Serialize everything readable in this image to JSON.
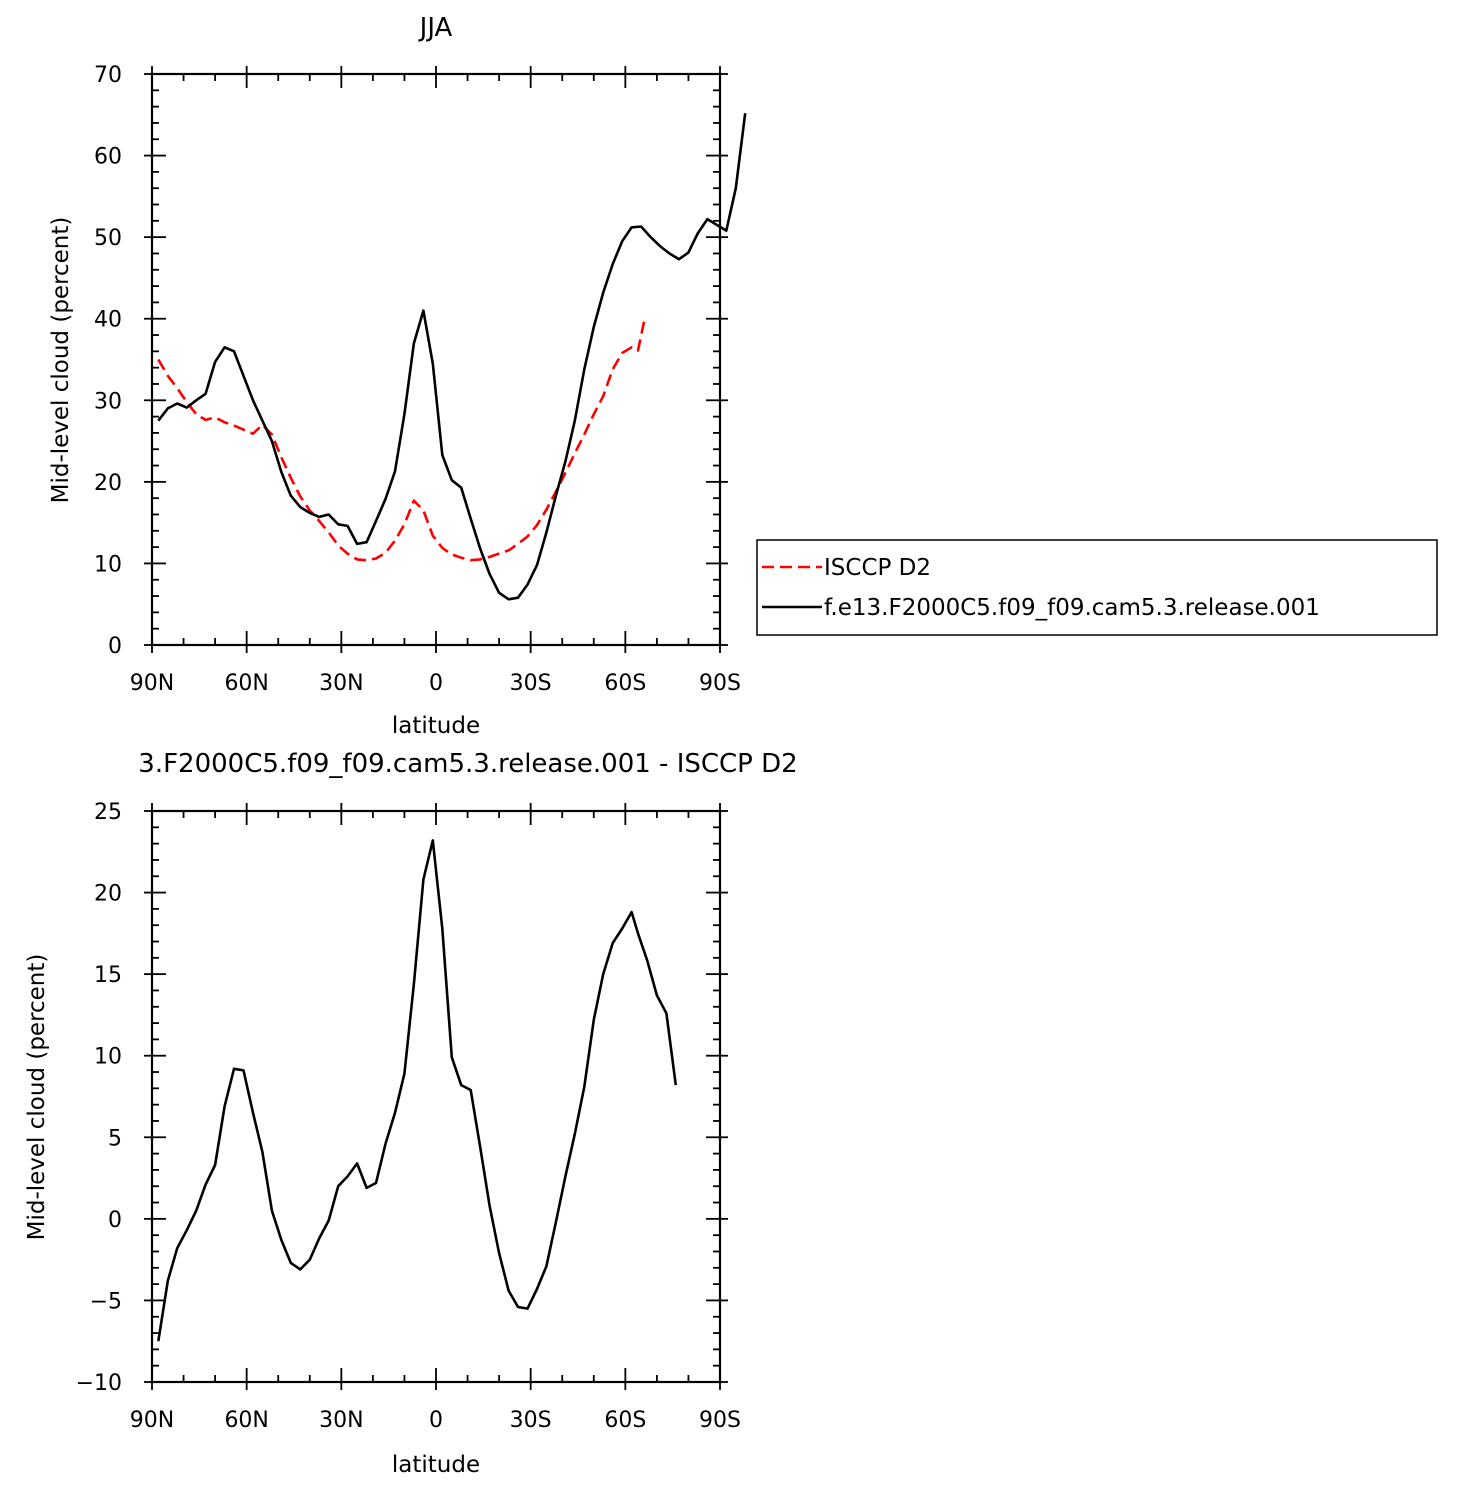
{
  "chart_data": [
    {
      "type": "line",
      "title": "JJA",
      "xlabel": "latitude",
      "ylabel": "Mid-level cloud (percent)",
      "xlim": [
        -90,
        90
      ],
      "ylim": [
        0,
        70
      ],
      "x_ticks": [
        -90,
        -60,
        -30,
        0,
        30,
        60,
        90
      ],
      "x_tick_labels": [
        "90N",
        "60N",
        "30N",
        "0",
        "30S",
        "60S",
        "90S"
      ],
      "y_ticks": [
        0,
        10,
        20,
        30,
        40,
        50,
        60,
        70
      ],
      "y_tick_labels": [
        "0",
        "10",
        "20",
        "30",
        "40",
        "50",
        "60",
        "70"
      ],
      "legend_position": "right",
      "series": [
        {
          "name": "ISCCP D2",
          "color": "#ff0000",
          "dash": "dashed",
          "points": [
            [
              -88,
              35
            ],
            [
              -85,
              33
            ],
            [
              -82,
              31.5
            ],
            [
              -79,
              29.8
            ],
            [
              -76,
              28.3
            ],
            [
              -73,
              27.6
            ],
            [
              -70,
              27.9
            ],
            [
              -67,
              27.3
            ],
            [
              -64,
              26.9
            ],
            [
              -61,
              26.4
            ],
            [
              -58,
              25.9
            ],
            [
              -55,
              27.0
            ],
            [
              -52,
              25.8
            ],
            [
              -49,
              23.0
            ],
            [
              -46,
              20.5
            ],
            [
              -43,
              18.2
            ],
            [
              -40,
              16.5
            ],
            [
              -37,
              15.2
            ],
            [
              -34,
              13.8
            ],
            [
              -31,
              12.2
            ],
            [
              -28,
              11.2
            ],
            [
              -25,
              10.5
            ],
            [
              -22,
              10.4
            ],
            [
              -19,
              10.6
            ],
            [
              -16,
              11.3
            ],
            [
              -13,
              12.8
            ],
            [
              -10,
              14.8
            ],
            [
              -7,
              17.7
            ],
            [
              -4,
              16.5
            ],
            [
              -1,
              13.4
            ],
            [
              2,
              11.9
            ],
            [
              5,
              11.1
            ],
            [
              8,
              10.7
            ],
            [
              11,
              10.4
            ],
            [
              14,
              10.5
            ],
            [
              17,
              10.8
            ],
            [
              20,
              11.2
            ],
            [
              23,
              11.6
            ],
            [
              26,
              12.4
            ],
            [
              29,
              13.3
            ],
            [
              32,
              14.7
            ],
            [
              35,
              16.6
            ],
            [
              38,
              18.8
            ],
            [
              41,
              21.1
            ],
            [
              44,
              23.5
            ],
            [
              47,
              25.8
            ],
            [
              50,
              28.3
            ],
            [
              53,
              30.5
            ],
            [
              56,
              33.8
            ],
            [
              59,
              35.8
            ],
            [
              62,
              36.5
            ],
            [
              64,
              36.1
            ],
            [
              66,
              39.8
            ]
          ]
        },
        {
          "name": "f.e13.F2000C5.f09_f09.cam5.3.release.001",
          "color": "#000000",
          "dash": "solid",
          "points": [
            [
              -88,
              27.5
            ],
            [
              -85,
              29.0
            ],
            [
              -82,
              29.6
            ],
            [
              -79,
              29.1
            ],
            [
              -76,
              30.0
            ],
            [
              -73,
              30.8
            ],
            [
              -70,
              34.7
            ],
            [
              -67,
              36.5
            ],
            [
              -64,
              36.0
            ],
            [
              -61,
              33.0
            ],
            [
              -58,
              30.0
            ],
            [
              -55,
              27.5
            ],
            [
              -52,
              25.0
            ],
            [
              -49,
              21.2
            ],
            [
              -46,
              18.3
            ],
            [
              -43,
              16.9
            ],
            [
              -40,
              16.2
            ],
            [
              -37,
              15.7
            ],
            [
              -34,
              16.0
            ],
            [
              -31,
              14.8
            ],
            [
              -28,
              14.6
            ],
            [
              -25,
              12.4
            ],
            [
              -22,
              12.6
            ],
            [
              -19,
              15.2
            ],
            [
              -16,
              17.9
            ],
            [
              -13,
              21.3
            ],
            [
              -10,
              28.3
            ],
            [
              -7,
              37.0
            ],
            [
              -4,
              41.0
            ],
            [
              -1,
              34.5
            ],
            [
              2,
              23.3
            ],
            [
              5,
              20.2
            ],
            [
              8,
              19.3
            ],
            [
              11,
              15.5
            ],
            [
              14,
              11.8
            ],
            [
              17,
              8.7
            ],
            [
              20,
              6.4
            ],
            [
              23,
              5.6
            ],
            [
              26,
              5.8
            ],
            [
              29,
              7.4
            ],
            [
              32,
              9.8
            ],
            [
              35,
              13.8
            ],
            [
              38,
              18.3
            ],
            [
              41,
              22.5
            ],
            [
              44,
              27.5
            ],
            [
              47,
              33.8
            ],
            [
              50,
              39.0
            ],
            [
              53,
              43.2
            ],
            [
              56,
              46.7
            ],
            [
              59,
              49.5
            ],
            [
              62,
              51.2
            ],
            [
              65,
              51.3
            ],
            [
              68,
              50.0
            ],
            [
              71,
              48.9
            ],
            [
              74,
              48.0
            ],
            [
              77,
              47.3
            ],
            [
              80,
              48.1
            ],
            [
              83,
              50.5
            ],
            [
              86,
              52.2
            ],
            [
              89,
              51.5
            ],
            [
              92,
              50.8
            ],
            [
              95,
              56.0
            ],
            [
              98,
              65.2
            ]
          ]
        }
      ]
    },
    {
      "type": "line",
      "title": "3.F2000C5.f09_f09.cam5.3.release.001 - ISCCP D2",
      "xlabel": "latitude",
      "ylabel": "Mid-level cloud (percent)",
      "xlim": [
        -90,
        90
      ],
      "ylim": [
        -10,
        25
      ],
      "x_ticks": [
        -90,
        -60,
        -30,
        0,
        30,
        60,
        90
      ],
      "x_tick_labels": [
        "90N",
        "60N",
        "30N",
        "0",
        "30S",
        "60S",
        "90S"
      ],
      "y_ticks": [
        -10,
        -5,
        0,
        5,
        10,
        15,
        20,
        25
      ],
      "y_tick_labels": [
        "−10",
        "−5",
        "0",
        "5",
        "10",
        "15",
        "20",
        "25"
      ],
      "series": [
        {
          "color": "#000000",
          "dash": "solid",
          "points": [
            [
              -88,
              -7.5
            ],
            [
              -85,
              -3.8
            ],
            [
              -82,
              -1.8
            ],
            [
              -79,
              -0.7
            ],
            [
              -76,
              0.5
            ],
            [
              -73,
              2.1
            ],
            [
              -70,
              3.3
            ],
            [
              -67,
              6.9
            ],
            [
              -64,
              9.2
            ],
            [
              -61,
              9.1
            ],
            [
              -58,
              6.5
            ],
            [
              -55,
              4.1
            ],
            [
              -52,
              0.5
            ],
            [
              -49,
              -1.3
            ],
            [
              -46,
              -2.7
            ],
            [
              -43,
              -3.1
            ],
            [
              -40,
              -2.5
            ],
            [
              -37,
              -1.2
            ],
            [
              -34,
              -0.1
            ],
            [
              -31,
              2.0
            ],
            [
              -28,
              2.6
            ],
            [
              -25,
              3.4
            ],
            [
              -22,
              1.9
            ],
            [
              -19,
              2.2
            ],
            [
              -16,
              4.6
            ],
            [
              -13,
              6.5
            ],
            [
              -10,
              8.9
            ],
            [
              -7,
              14.4
            ],
            [
              -4,
              20.8
            ],
            [
              -1,
              23.2
            ],
            [
              2,
              17.8
            ],
            [
              5,
              9.9
            ],
            [
              8,
              8.2
            ],
            [
              11,
              7.9
            ],
            [
              14,
              4.4
            ],
            [
              17,
              0.8
            ],
            [
              20,
              -2.1
            ],
            [
              23,
              -4.4
            ],
            [
              26,
              -5.4
            ],
            [
              29,
              -5.5
            ],
            [
              32,
              -4.3
            ],
            [
              35,
              -2.9
            ],
            [
              38,
              -0.2
            ],
            [
              41,
              2.6
            ],
            [
              44,
              5.2
            ],
            [
              47,
              8.1
            ],
            [
              50,
              12.2
            ],
            [
              53,
              15.0
            ],
            [
              56,
              16.9
            ],
            [
              59,
              17.8
            ],
            [
              62,
              18.8
            ],
            [
              64,
              17.5
            ],
            [
              67,
              15.8
            ],
            [
              70,
              13.7
            ],
            [
              73,
              12.6
            ],
            [
              76,
              8.2
            ]
          ]
        }
      ]
    }
  ]
}
